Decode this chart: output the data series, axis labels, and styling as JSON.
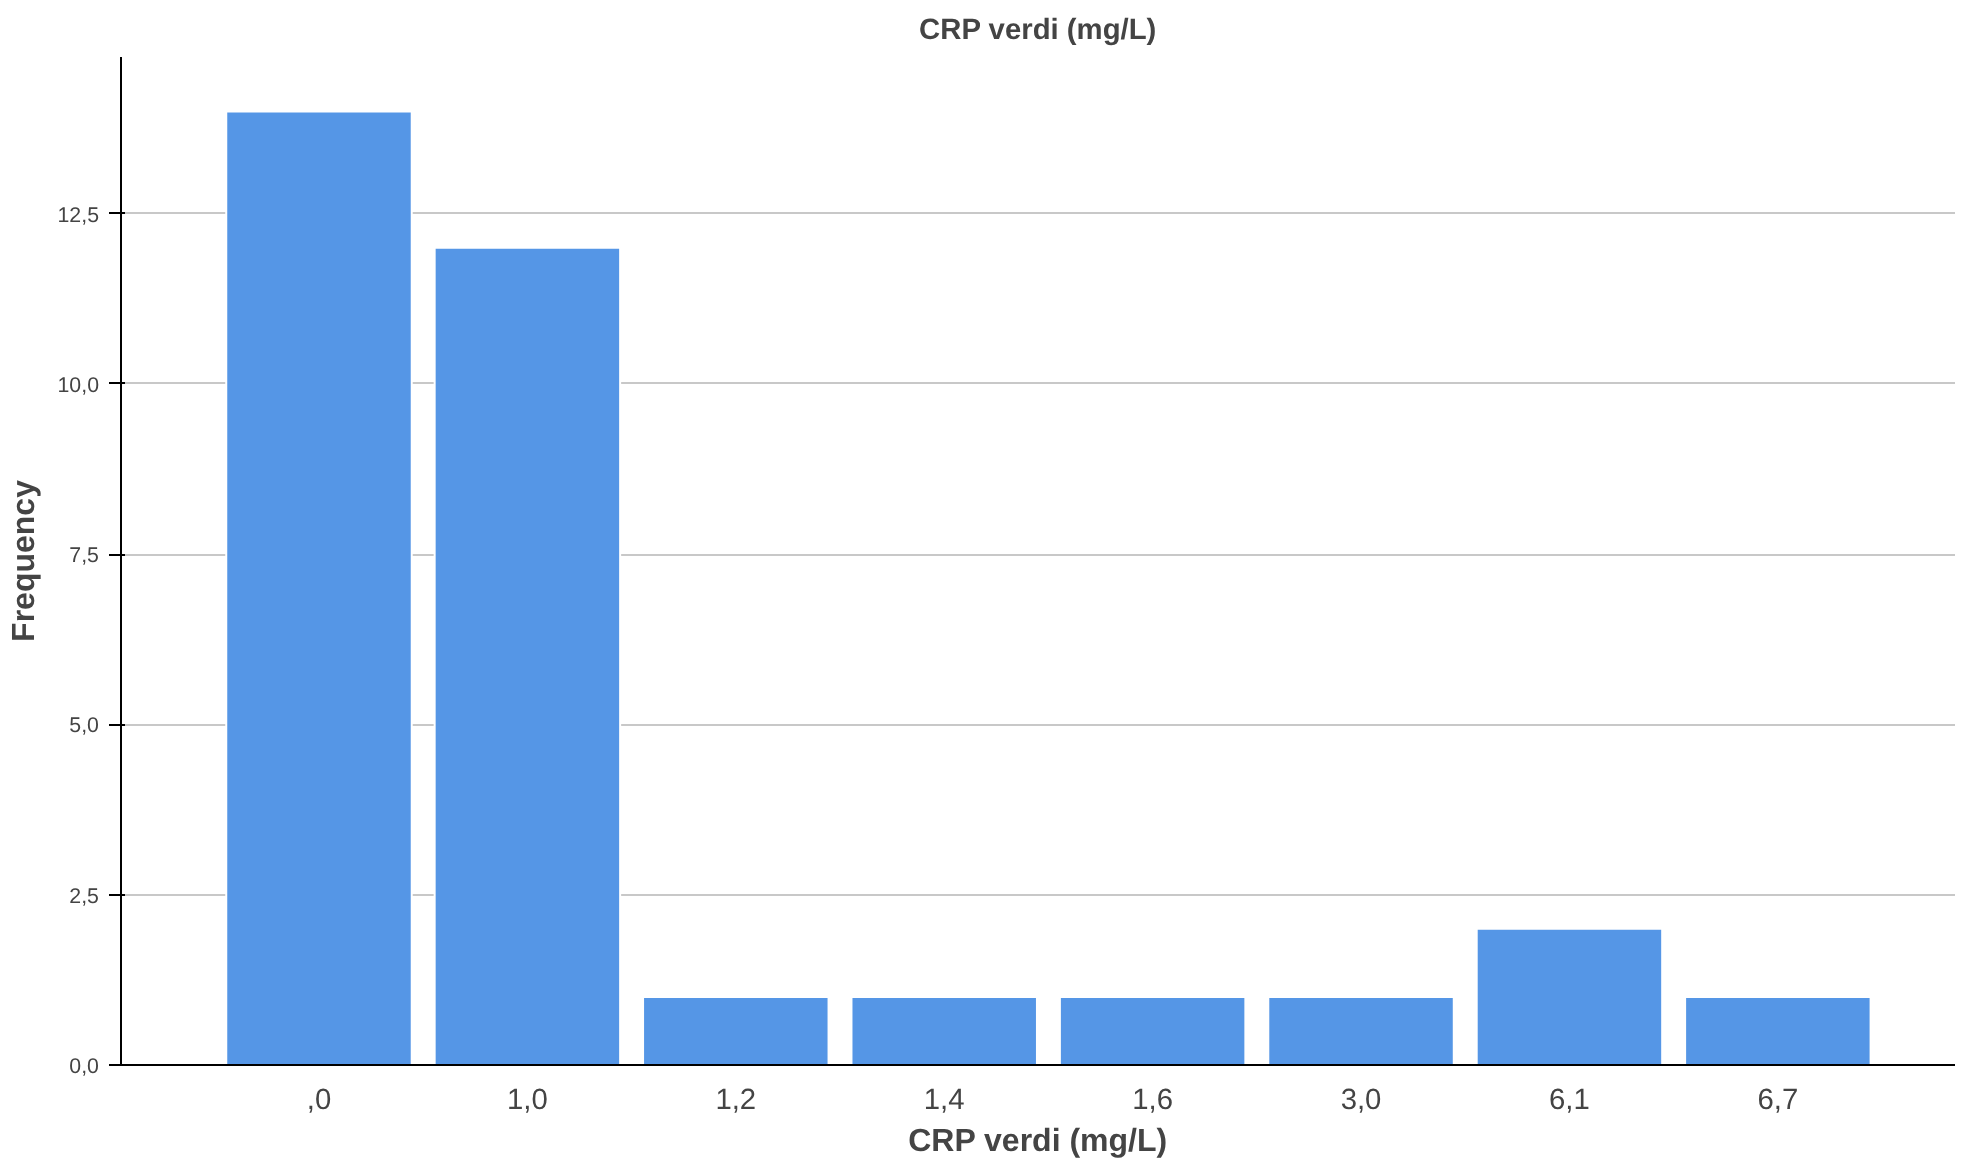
{
  "chart_data": {
    "type": "bar",
    "title": "CRP verdi (mg/L)",
    "xlabel": "CRP verdi (mg/L)",
    "ylabel": "Frequency",
    "categories": [
      ",0",
      "1,0",
      "1,2",
      "1,4",
      "1,6",
      "3,0",
      "6,1",
      "6,7"
    ],
    "values": [
      14,
      12,
      1,
      1,
      1,
      1,
      2,
      1
    ],
    "color": "#5596e6",
    "ylim": [
      0,
      14.8
    ],
    "yticks": [
      {
        "value": 0,
        "label": "0,0"
      },
      {
        "value": 2.5,
        "label": "2,5"
      },
      {
        "value": 5,
        "label": "5,0"
      },
      {
        "value": 7.5,
        "label": "7,5"
      },
      {
        "value": 10,
        "label": "10,0"
      },
      {
        "value": 12.5,
        "label": "12,5"
      }
    ],
    "grid": "y"
  }
}
